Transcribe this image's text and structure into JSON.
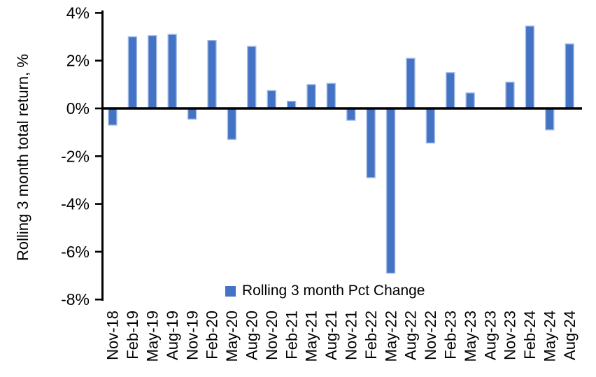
{
  "chart_data": {
    "type": "bar",
    "title": "",
    "xlabel": "",
    "ylabel": "Rolling 3 month total return, %",
    "ylim": [
      -8,
      4
    ],
    "grid": false,
    "legend_position": "bottom-center-inside",
    "yticks": [
      {
        "value": 4,
        "label": "4%"
      },
      {
        "value": 2,
        "label": "2%"
      },
      {
        "value": 0,
        "label": "0%"
      },
      {
        "value": -2,
        "label": "-2%"
      },
      {
        "value": -4,
        "label": "-4%"
      },
      {
        "value": -6,
        "label": "-6%"
      },
      {
        "value": -8,
        "label": "-8%"
      }
    ],
    "categories": [
      "Nov-18",
      "Feb-19",
      "May-19",
      "Aug-19",
      "Nov-19",
      "Feb-20",
      "May-20",
      "Aug-20",
      "Nov-20",
      "Feb-21",
      "May-21",
      "Aug-21",
      "Nov-21",
      "Feb-22",
      "May-22",
      "Aug-22",
      "Nov-22",
      "Feb-23",
      "May-23",
      "Aug-23",
      "Nov-23",
      "Feb-24",
      "May-24",
      "Aug-24"
    ],
    "series": [
      {
        "name": "Rolling 3 month Pct Change",
        "values": [
          -0.7,
          3.0,
          3.05,
          3.1,
          -0.45,
          2.85,
          -1.3,
          2.6,
          0.75,
          0.3,
          1.0,
          1.05,
          -0.5,
          -2.9,
          -6.9,
          2.1,
          -1.45,
          1.5,
          0.65,
          0.0,
          1.1,
          3.45,
          -0.9,
          2.7
        ]
      }
    ],
    "colors": {
      "bar_fill": "#4472C4",
      "bar_border": "#A6BFE8",
      "axis": "#000000",
      "text": "#000000"
    }
  }
}
